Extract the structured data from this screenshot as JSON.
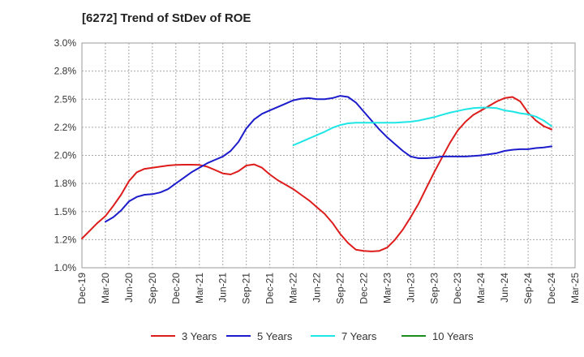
{
  "chart_data": {
    "type": "line",
    "title": "[6272]  Trend of StDev of ROE",
    "xlabel": "",
    "ylabel": "",
    "x_ticks": [
      "Dec-19",
      "Mar-20",
      "Jun-20",
      "Sep-20",
      "Dec-20",
      "Mar-21",
      "Jun-21",
      "Sep-21",
      "Dec-21",
      "Mar-22",
      "Jun-22",
      "Sep-22",
      "Dec-22",
      "Mar-23",
      "Jun-23",
      "Sep-23",
      "Dec-23",
      "Mar-24",
      "Jun-24",
      "Sep-24",
      "Dec-24",
      "Mar-25"
    ],
    "y_ticks": [
      "1.0%",
      "1.2%",
      "1.5%",
      "1.8%",
      "2.0%",
      "2.2%",
      "2.5%",
      "2.8%",
      "3.0%"
    ],
    "ylim": [
      1.0,
      3.0
    ],
    "grid": true,
    "legend_position": "bottom",
    "series": [
      {
        "name": "3 Years",
        "color": "#dd1c1c",
        "x": [
          "Dec-19",
          "Jan-20",
          "Feb-20",
          "Mar-20",
          "Apr-20",
          "May-20",
          "Jun-20",
          "Jul-20",
          "Aug-20",
          "Sep-20",
          "Oct-20",
          "Nov-20",
          "Dec-20",
          "Jan-21",
          "Feb-21",
          "Mar-21",
          "Apr-21",
          "May-21",
          "Jun-21",
          "Jul-21",
          "Aug-21",
          "Sep-21",
          "Oct-21",
          "Nov-21",
          "Dec-21",
          "Jan-22",
          "Feb-22",
          "Mar-22",
          "Apr-22",
          "May-22",
          "Jun-22",
          "Jul-22",
          "Aug-22",
          "Sep-22",
          "Oct-22",
          "Nov-22",
          "Dec-22",
          "Jan-23",
          "Feb-23",
          "Mar-23",
          "Apr-23",
          "May-23",
          "Jun-23",
          "Jul-23",
          "Aug-23",
          "Sep-23",
          "Oct-23",
          "Nov-23",
          "Dec-23",
          "Jan-24",
          "Feb-24",
          "Mar-24",
          "Apr-24",
          "May-24",
          "Jun-24",
          "Jul-24",
          "Aug-24",
          "Sep-24",
          "Oct-24",
          "Nov-24",
          "Dec-24"
        ],
        "values": [
          1.26,
          1.33,
          1.4,
          1.46,
          1.55,
          1.65,
          1.77,
          1.85,
          1.88,
          1.89,
          1.9,
          1.91,
          1.915,
          1.917,
          1.917,
          1.915,
          1.9,
          1.87,
          1.84,
          1.83,
          1.86,
          1.91,
          1.92,
          1.89,
          1.83,
          1.78,
          1.74,
          1.7,
          1.65,
          1.6,
          1.54,
          1.48,
          1.4,
          1.3,
          1.22,
          1.16,
          1.15,
          1.145,
          1.15,
          1.18,
          1.25,
          1.34,
          1.45,
          1.57,
          1.71,
          1.85,
          1.98,
          2.11,
          2.22,
          2.3,
          2.36,
          2.4,
          2.44,
          2.48,
          2.51,
          2.52,
          2.48,
          2.38,
          2.31,
          2.26,
          2.23
        ]
      },
      {
        "name": "5 Years",
        "color": "#1c1ccc",
        "x": [
          "Mar-20",
          "Apr-20",
          "May-20",
          "Jun-20",
          "Jul-20",
          "Aug-20",
          "Sep-20",
          "Oct-20",
          "Nov-20",
          "Dec-20",
          "Jan-21",
          "Feb-21",
          "Mar-21",
          "Apr-21",
          "May-21",
          "Jun-21",
          "Jul-21",
          "Aug-21",
          "Sep-21",
          "Oct-21",
          "Nov-21",
          "Dec-21",
          "Jan-22",
          "Feb-22",
          "Mar-22",
          "Apr-22",
          "May-22",
          "Jun-22",
          "Jul-22",
          "Aug-22",
          "Sep-22",
          "Oct-22",
          "Nov-22",
          "Dec-22",
          "Jan-23",
          "Feb-23",
          "Mar-23",
          "Apr-23",
          "May-23",
          "Jun-23",
          "Jul-23",
          "Aug-23",
          "Sep-23",
          "Oct-23",
          "Nov-23",
          "Dec-23",
          "Jan-24",
          "Feb-24",
          "Mar-24",
          "Apr-24",
          "May-24",
          "Jun-24",
          "Jul-24",
          "Aug-24",
          "Sep-24",
          "Oct-24",
          "Nov-24",
          "Dec-24"
        ],
        "values": [
          1.41,
          1.45,
          1.51,
          1.59,
          1.63,
          1.65,
          1.655,
          1.67,
          1.7,
          1.75,
          1.8,
          1.85,
          1.89,
          1.93,
          1.96,
          1.99,
          2.04,
          2.12,
          2.24,
          2.32,
          2.37,
          2.4,
          2.43,
          2.46,
          2.49,
          2.505,
          2.51,
          2.5,
          2.5,
          2.51,
          2.53,
          2.52,
          2.47,
          2.39,
          2.31,
          2.23,
          2.16,
          2.1,
          2.04,
          1.99,
          1.975,
          1.975,
          1.98,
          1.99,
          1.99,
          1.99,
          1.99,
          1.995,
          2.0,
          2.01,
          2.02,
          2.04,
          2.05,
          2.055,
          2.055,
          2.065,
          2.07,
          2.08
        ]
      },
      {
        "name": "7 Years",
        "color": "#1ee6e6",
        "x": [
          "Mar-22",
          "Apr-22",
          "May-22",
          "Jun-22",
          "Jul-22",
          "Aug-22",
          "Sep-22",
          "Oct-22",
          "Nov-22",
          "Dec-22",
          "Jan-23",
          "Feb-23",
          "Mar-23",
          "Apr-23",
          "May-23",
          "Jun-23",
          "Jul-23",
          "Aug-23",
          "Sep-23",
          "Oct-23",
          "Nov-23",
          "Dec-23",
          "Jan-24",
          "Feb-24",
          "Mar-24",
          "Apr-24",
          "May-24",
          "Jun-24",
          "Jul-24",
          "Aug-24",
          "Sep-24",
          "Oct-24",
          "Nov-24",
          "Dec-24"
        ],
        "values": [
          2.09,
          2.12,
          2.15,
          2.18,
          2.21,
          2.245,
          2.27,
          2.285,
          2.29,
          2.29,
          2.29,
          2.29,
          2.29,
          2.29,
          2.295,
          2.3,
          2.31,
          2.325,
          2.34,
          2.36,
          2.38,
          2.395,
          2.41,
          2.42,
          2.425,
          2.425,
          2.42,
          2.4,
          2.39,
          2.375,
          2.365,
          2.345,
          2.31,
          2.26
        ]
      },
      {
        "name": "10 Years",
        "color": "#1c8c1c",
        "x": [],
        "values": []
      }
    ]
  }
}
